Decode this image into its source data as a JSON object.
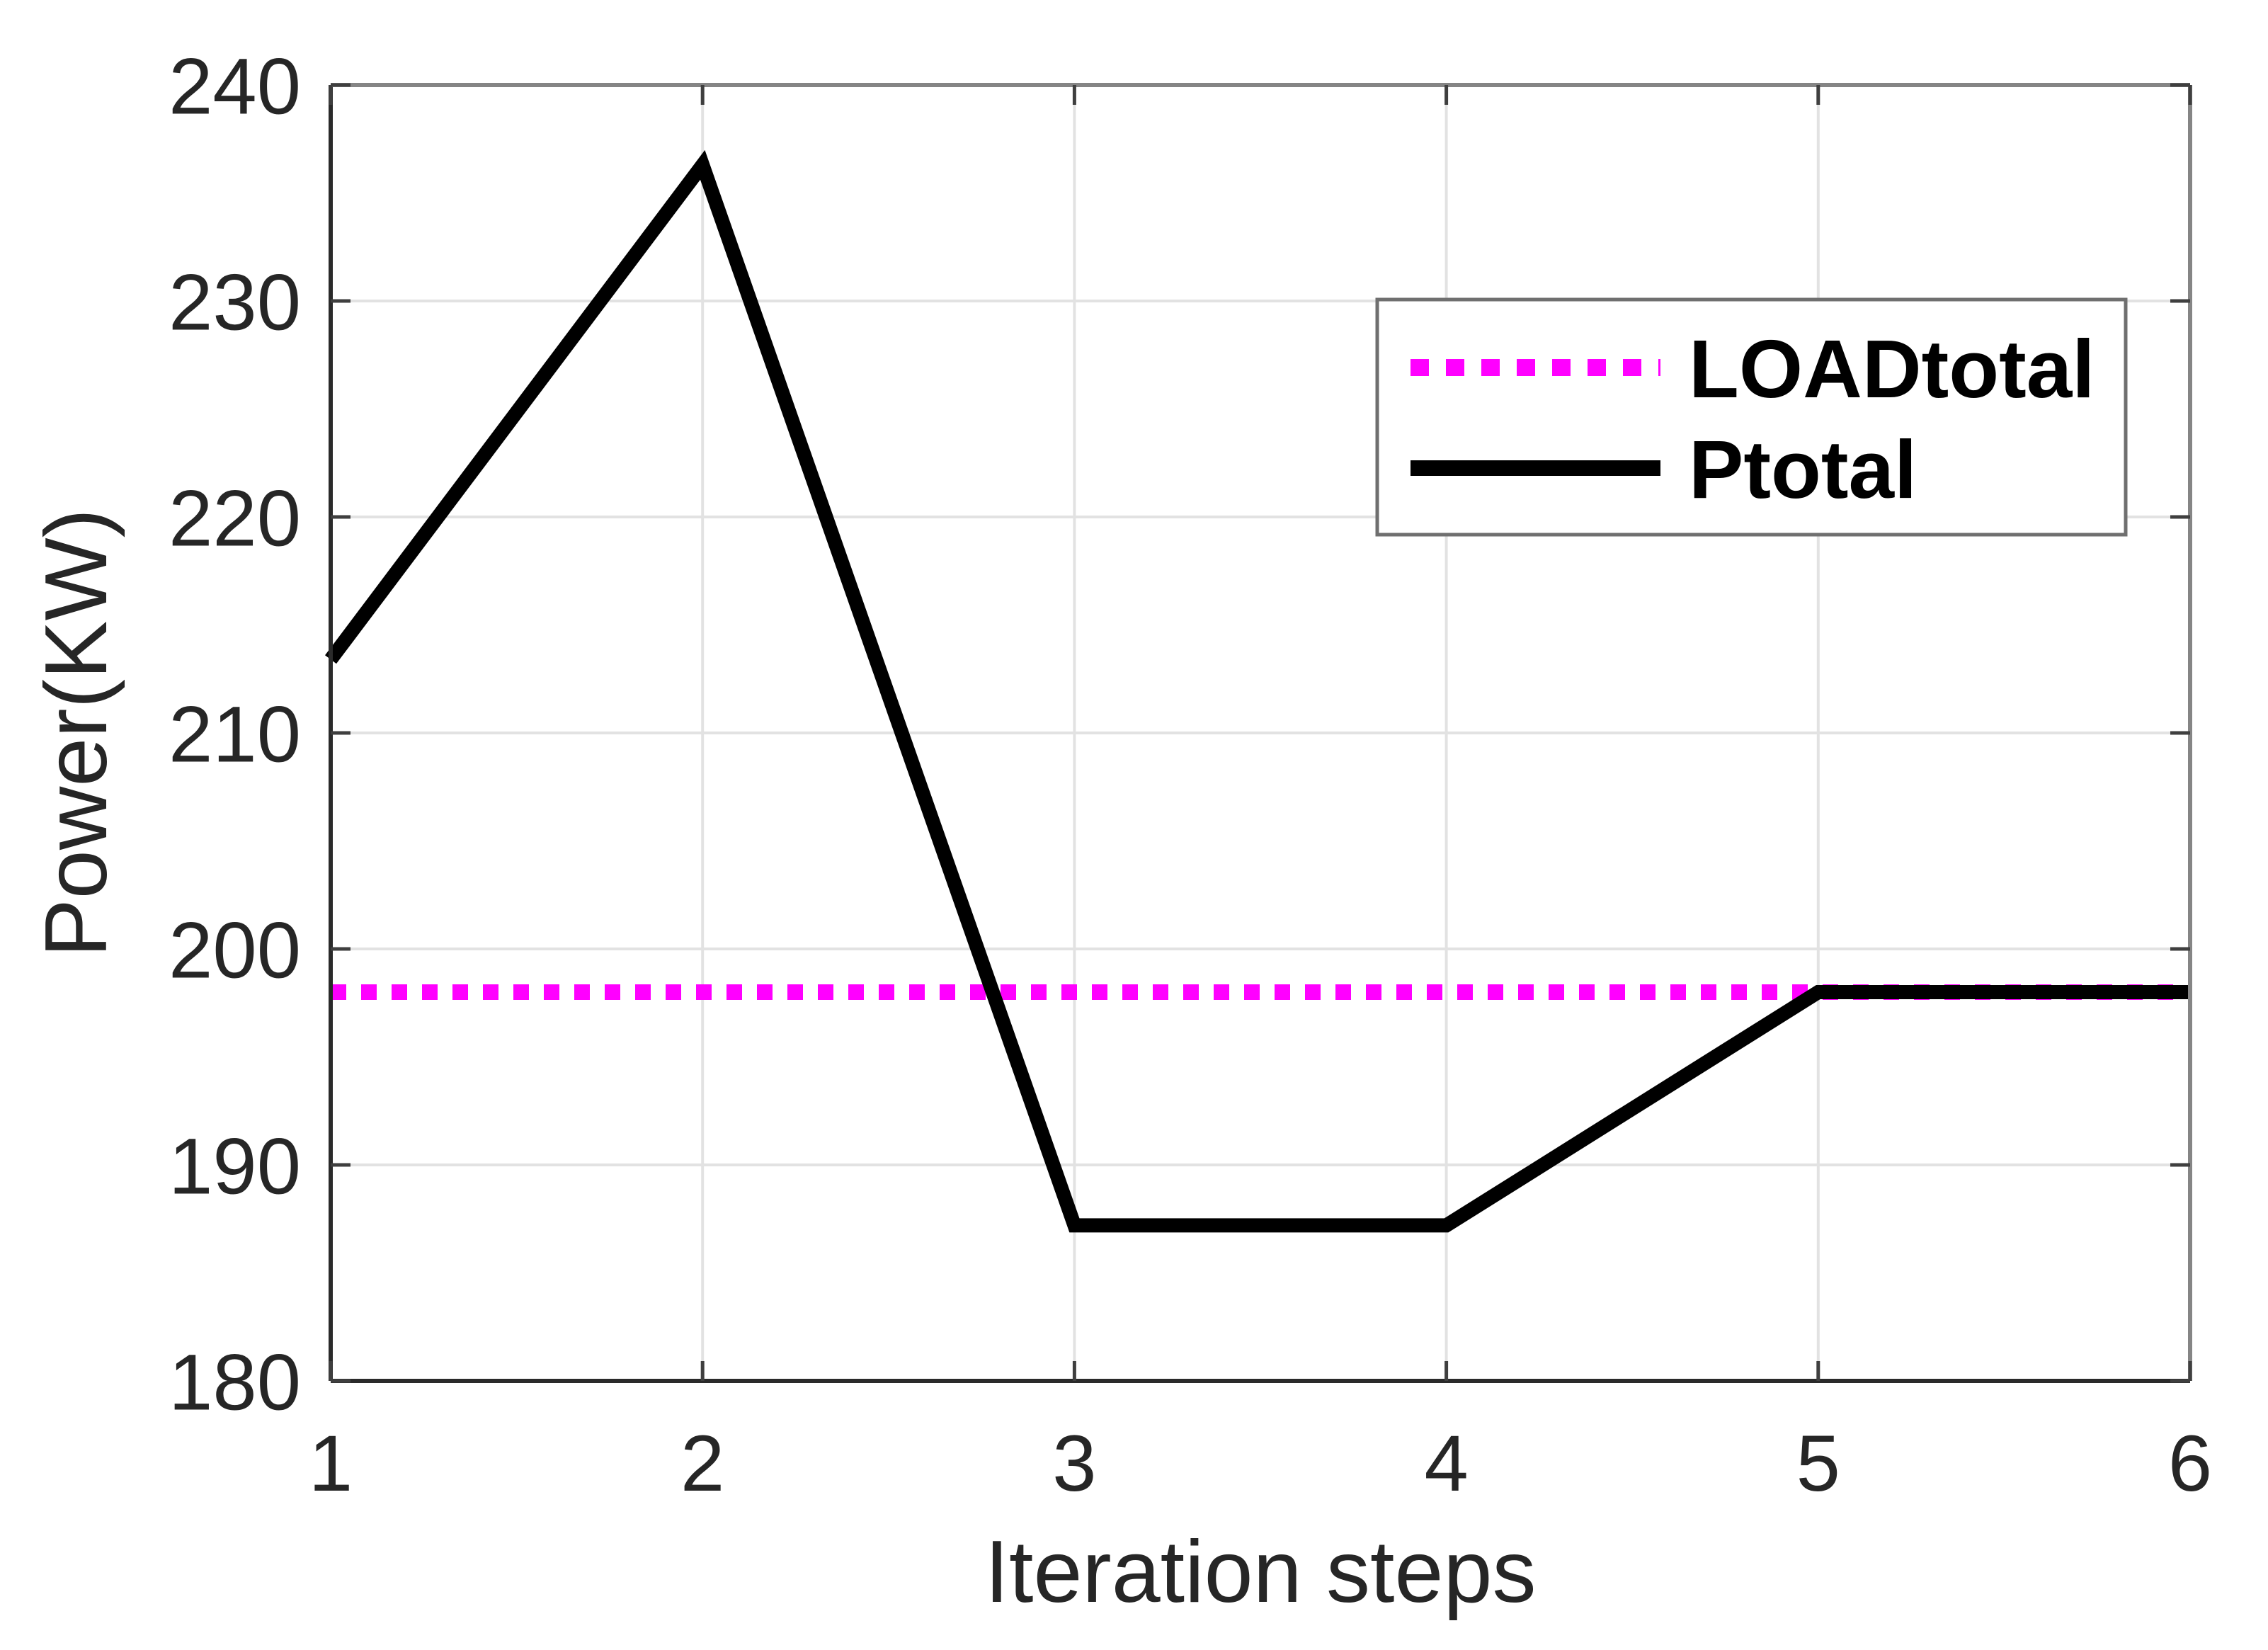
{
  "figure": {
    "background": "#ffffff",
    "axis_color": "#2a2a2a",
    "axis_color_light": "#858585",
    "grid_color": "#e2e2e2",
    "tick_color": "#3f3f3f",
    "text_color": "#262626"
  },
  "chart_data": {
    "type": "line",
    "title": "",
    "xlabel": "Iteration steps",
    "ylabel": "Power(KW)",
    "x": [
      1,
      2,
      3,
      4,
      5,
      6
    ],
    "xlim": [
      1,
      6
    ],
    "ylim": [
      180,
      240
    ],
    "xticks": [
      1,
      2,
      3,
      4,
      5,
      6
    ],
    "yticks": [
      180,
      190,
      200,
      210,
      220,
      230,
      240
    ],
    "grid": true,
    "legend_position": "upper-right-inside",
    "series": [
      {
        "name": "LOADtotal",
        "values": [
          198,
          198,
          198,
          198,
          198,
          198
        ],
        "color": "#ff00ff",
        "style": "dotted",
        "width": 22
      },
      {
        "name": "Ptotal",
        "values": [
          213.4,
          236.3,
          187.2,
          187.2,
          198,
          198
        ],
        "color": "#000000",
        "style": "solid",
        "width": 20
      }
    ]
  }
}
